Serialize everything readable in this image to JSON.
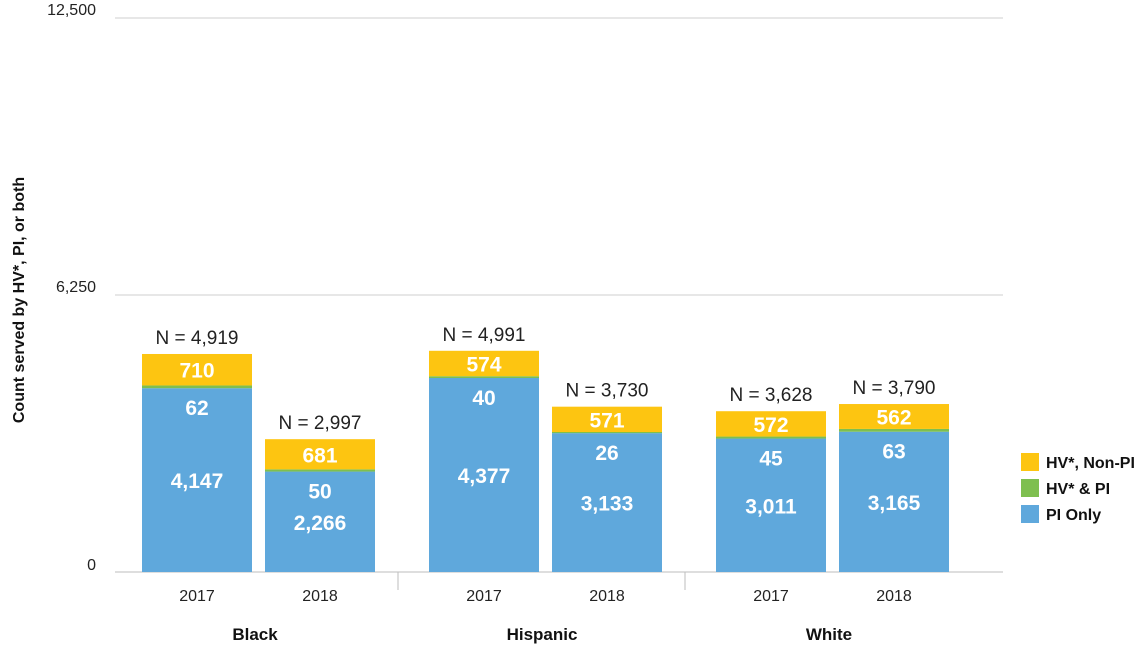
{
  "chart_data": {
    "type": "bar",
    "stacked": true,
    "ylabel": "Count served by HV*, PI, or both",
    "ylim": [
      0,
      12500
    ],
    "yticks": [
      "0",
      "6,250",
      "12,500"
    ],
    "ytick_values": [
      0,
      6250,
      12500
    ],
    "groups": [
      {
        "name": "Black",
        "bars": [
          {
            "year": "2017",
            "total_label": "N = 4,919",
            "values": [
              4147,
              62,
              710
            ],
            "labels": [
              "4,147",
              "62",
              "710"
            ]
          },
          {
            "year": "2018",
            "total_label": "N = 2,997",
            "values": [
              2266,
              50,
              681
            ],
            "labels": [
              "2,266",
              "50",
              "681"
            ]
          }
        ]
      },
      {
        "name": "Hispanic",
        "bars": [
          {
            "year": "2017",
            "total_label": "N = 4,991",
            "values": [
              4377,
              40,
              574
            ],
            "labels": [
              "4,377",
              "40",
              "574"
            ]
          },
          {
            "year": "2018",
            "total_label": "N = 3,730",
            "values": [
              3133,
              26,
              571
            ],
            "labels": [
              "3,133",
              "26",
              "571"
            ]
          }
        ]
      },
      {
        "name": "White",
        "bars": [
          {
            "year": "2017",
            "total_label": "N = 3,628",
            "values": [
              3011,
              45,
              572
            ],
            "labels": [
              "3,011",
              "45",
              "572"
            ]
          },
          {
            "year": "2018",
            "total_label": "N = 3,790",
            "values": [
              3165,
              63,
              562
            ],
            "labels": [
              "3,165",
              "63",
              "562"
            ]
          }
        ]
      }
    ],
    "series": [
      {
        "name": "PI Only",
        "color": "#5fa8dc"
      },
      {
        "name": "HV* & PI",
        "color": "#7ebf4f"
      },
      {
        "name": "HV*, Non-PI",
        "color": "#fdc511"
      }
    ],
    "legend_position": "right",
    "grid": true
  }
}
